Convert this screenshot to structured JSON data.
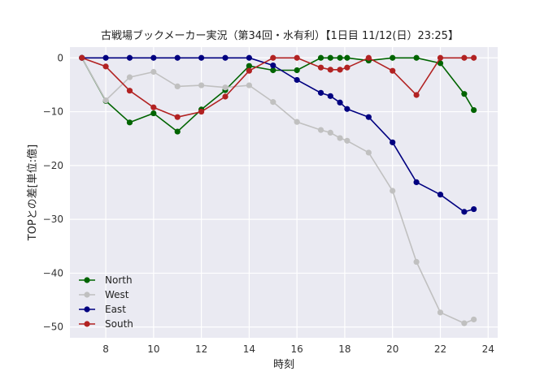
{
  "chart_data": {
    "type": "line",
    "title": "古戦場ブックメーカー実況（第34回・水有利）【1日目 11/12(日）23:25】",
    "xlabel": "時刻",
    "ylabel": "TOPとの差[単位:億]",
    "xlim": [
      6.5,
      24.4
    ],
    "ylim": [
      -52,
      2
    ],
    "xticks": [
      8,
      10,
      12,
      14,
      16,
      18,
      20,
      22,
      24
    ],
    "yticks": [
      0,
      -10,
      -20,
      -30,
      -40,
      -50
    ],
    "grid": true,
    "legend_position": "lower-left",
    "series": [
      {
        "name": "North",
        "color": "#006400",
        "points": [
          [
            7,
            0
          ],
          [
            8,
            -8
          ],
          [
            9,
            -12
          ],
          [
            10,
            -10.3
          ],
          [
            11,
            -13.7
          ],
          [
            12,
            -9.6
          ],
          [
            13,
            -6
          ],
          [
            14,
            -1.5
          ],
          [
            15,
            -2.3
          ],
          [
            16,
            -2.3
          ],
          [
            17,
            0
          ],
          [
            17.4,
            0
          ],
          [
            17.8,
            0
          ],
          [
            18.1,
            0
          ],
          [
            19,
            -0.5
          ],
          [
            20,
            0
          ],
          [
            21,
            0
          ],
          [
            22,
            -1
          ],
          [
            23,
            -6.7
          ],
          [
            23.4,
            -9.7
          ]
        ]
      },
      {
        "name": "West",
        "color": "#c0c0c0",
        "points": [
          [
            7,
            0
          ],
          [
            8,
            -7.9
          ],
          [
            9,
            -3.6
          ],
          [
            10,
            -2.6
          ],
          [
            11,
            -5.3
          ],
          [
            12,
            -5.1
          ],
          [
            13,
            -5.5
          ],
          [
            14,
            -5.1
          ],
          [
            15,
            -8.2
          ],
          [
            16,
            -11.9
          ],
          [
            17,
            -13.4
          ],
          [
            17.4,
            -13.9
          ],
          [
            17.8,
            -14.9
          ],
          [
            18.1,
            -15.4
          ],
          [
            19,
            -17.6
          ],
          [
            20,
            -24.7
          ],
          [
            21,
            -37.9
          ],
          [
            22,
            -47.3
          ],
          [
            23,
            -49.3
          ],
          [
            23.4,
            -48.6
          ]
        ]
      },
      {
        "name": "East",
        "color": "#000080",
        "points": [
          [
            7,
            0
          ],
          [
            8,
            0
          ],
          [
            9,
            0
          ],
          [
            10,
            0
          ],
          [
            11,
            0
          ],
          [
            12,
            0
          ],
          [
            13,
            0
          ],
          [
            14,
            0
          ],
          [
            15,
            -1.4
          ],
          [
            16,
            -4.1
          ],
          [
            17,
            -6.5
          ],
          [
            17.4,
            -7.1
          ],
          [
            17.8,
            -8.3
          ],
          [
            18.1,
            -9.5
          ],
          [
            19,
            -11
          ],
          [
            20,
            -15.7
          ],
          [
            21,
            -23.1
          ],
          [
            22,
            -25.4
          ],
          [
            23,
            -28.6
          ],
          [
            23.4,
            -28.1
          ]
        ]
      },
      {
        "name": "South",
        "color": "#b22222",
        "points": [
          [
            7,
            0
          ],
          [
            8,
            -1.6
          ],
          [
            9,
            -6.1
          ],
          [
            10,
            -9.2
          ],
          [
            11,
            -11
          ],
          [
            12,
            -10
          ],
          [
            13,
            -7.2
          ],
          [
            14,
            -2.4
          ],
          [
            15,
            0
          ],
          [
            16,
            0
          ],
          [
            17,
            -1.8
          ],
          [
            17.4,
            -2.2
          ],
          [
            17.8,
            -2.2
          ],
          [
            18.1,
            -1.8
          ],
          [
            19,
            0
          ],
          [
            20,
            -2.4
          ],
          [
            21,
            -6.9
          ],
          [
            22,
            0
          ],
          [
            23,
            0
          ],
          [
            23.4,
            0
          ]
        ]
      }
    ]
  }
}
